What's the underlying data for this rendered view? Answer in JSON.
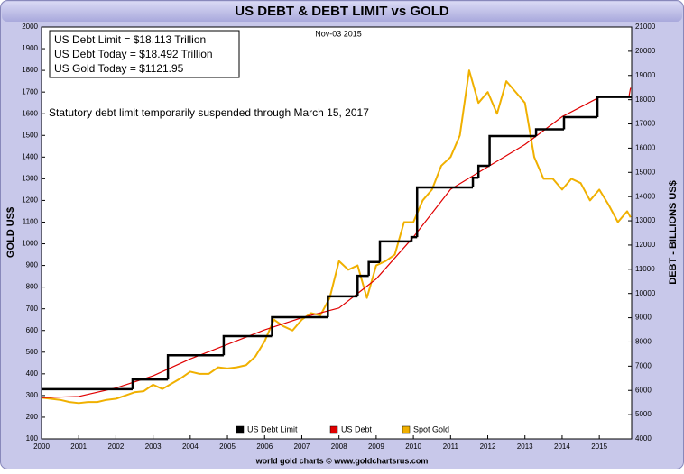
{
  "chart_data": {
    "type": "line",
    "title": "US DEBT & DEBT LIMIT vs GOLD",
    "date": "Nov-03  2015",
    "info_box": [
      "US Debt Limit    = $18.113 Trillion",
      "US Debt Today = $18.492 Trillion",
      "US Gold Today = $1121.95"
    ],
    "note": "Statutory debt limit temporarily suspended through March  15, 2017",
    "credit": "world gold charts © www.goldchartsrus.com",
    "ylabel": "GOLD US$",
    "y2label": "DEBT - BILLIONS US$",
    "xlim": [
      2000,
      2015.87
    ],
    "xticks": [
      2000,
      2001,
      2002,
      2003,
      2004,
      2005,
      2006,
      2007,
      2008,
      2009,
      2010,
      2011,
      2012,
      2013,
      2014,
      2015
    ],
    "ylim": [
      100,
      2000
    ],
    "yticks": [
      100,
      200,
      300,
      400,
      500,
      600,
      700,
      800,
      900,
      1000,
      1100,
      1200,
      1300,
      1400,
      1500,
      1600,
      1700,
      1800,
      1900,
      2000
    ],
    "y2lim": [
      4000,
      21000
    ],
    "y2ticks": [
      4000,
      5000,
      6000,
      7000,
      8000,
      9000,
      10000,
      11000,
      12000,
      13000,
      14000,
      15000,
      16000,
      17000,
      18000,
      19000,
      20000,
      21000
    ],
    "grid": false,
    "series": [
      {
        "name": "US Debt Limit",
        "color": "#000000",
        "axis": "y2",
        "style": "step",
        "x": [
          2000,
          2002.45,
          2003.4,
          2004.9,
          2006.2,
          2007.7,
          2008.5,
          2008.8,
          2009.1,
          2009.95,
          2010.1,
          2011.6,
          2011.75,
          2012.05,
          2013.3,
          2014.05,
          2014.95
        ],
        "values": [
          6050,
          6450,
          7450,
          8240,
          9020,
          9880,
          10730,
          11300,
          12150,
          12330,
          14380,
          14780,
          15270,
          16500,
          16780,
          17280,
          18113
        ]
      },
      {
        "name": "US Debt",
        "color": "#e00000",
        "axis": "y2",
        "x": [
          2000,
          2001,
          2002,
          2003,
          2004,
          2005,
          2006,
          2007,
          2008,
          2008.75,
          2009,
          2010,
          2011,
          2012,
          2013,
          2014,
          2015,
          2015.8,
          2015.84
        ],
        "values": [
          5700,
          5750,
          6100,
          6600,
          7300,
          7900,
          8500,
          9000,
          9400,
          10300,
          10600,
          12330,
          14300,
          15230,
          16150,
          17300,
          18100,
          18150,
          18492
        ]
      },
      {
        "name": "Spot Gold",
        "color": "#f0b000",
        "x": [
          2000,
          2000.25,
          2000.5,
          2000.75,
          2001,
          2001.25,
          2001.5,
          2001.75,
          2002,
          2002.25,
          2002.5,
          2002.75,
          2003,
          2003.25,
          2003.5,
          2003.75,
          2004,
          2004.25,
          2004.5,
          2004.75,
          2005,
          2005.25,
          2005.5,
          2005.75,
          2006,
          2006.25,
          2006.5,
          2006.75,
          2007,
          2007.25,
          2007.5,
          2007.75,
          2008,
          2008.25,
          2008.5,
          2008.75,
          2009,
          2009.25,
          2009.5,
          2009.75,
          2010,
          2010.25,
          2010.5,
          2010.75,
          2011,
          2011.25,
          2011.5,
          2011.75,
          2012,
          2012.25,
          2012.5,
          2012.75,
          2013,
          2013.25,
          2013.5,
          2013.75,
          2014,
          2014.25,
          2014.5,
          2014.75,
          2015,
          2015.25,
          2015.5,
          2015.75,
          2015.84
        ],
        "values": [
          290,
          285,
          280,
          270,
          265,
          270,
          270,
          280,
          285,
          300,
          315,
          320,
          350,
          330,
          355,
          380,
          410,
          400,
          400,
          430,
          425,
          430,
          440,
          480,
          550,
          650,
          620,
          600,
          650,
          680,
          670,
          750,
          920,
          880,
          900,
          750,
          900,
          920,
          950,
          1100,
          1100,
          1200,
          1250,
          1360,
          1400,
          1500,
          1800,
          1650,
          1700,
          1600,
          1750,
          1700,
          1650,
          1400,
          1300,
          1300,
          1250,
          1300,
          1280,
          1200,
          1250,
          1180,
          1100,
          1150,
          1122
        ]
      }
    ]
  }
}
